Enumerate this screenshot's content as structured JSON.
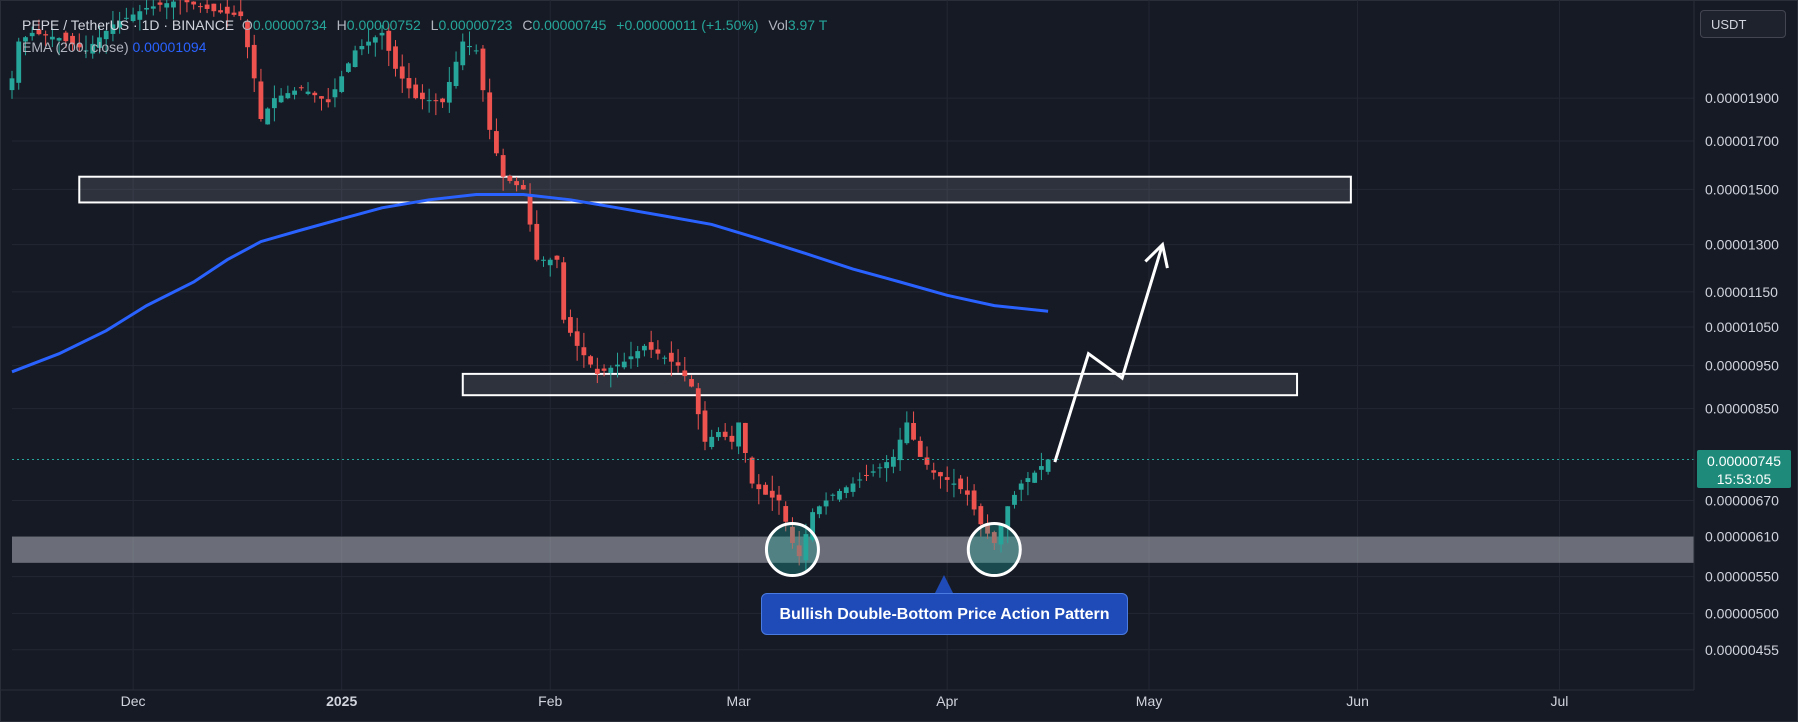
{
  "legend": {
    "symbol": "PEPE / TetherUS · 1D · BINANCE",
    "o_label": "O",
    "o_value": "0.00000734",
    "h_label": "H",
    "h_value": "0.00000752",
    "l_label": "L",
    "l_value": "0.00000723",
    "c_label": "C",
    "c_value": "0.00000745",
    "change": "+0.00000011 (+1.50%)",
    "vol_label": "Vol",
    "vol_value": "3.97 T",
    "ema_label": "EMA (200, close)",
    "ema_value": "0.00001094"
  },
  "currency_button": "USDT",
  "price_tag": {
    "price": "0.00000745",
    "countdown": "15:53:05"
  },
  "annotation_text": "Bullish Double-Bottom Price Action Pattern",
  "colors": {
    "background": "#161a25",
    "up": "#26a69a",
    "down": "#ef5350",
    "ema": "#2962ff",
    "grid": "#232733",
    "axis_text": "#d1d4dc"
  },
  "chart_data": {
    "type": "candlestick",
    "title": "PEPE / TetherUS · 1D · BINANCE",
    "y_scale": "log",
    "ylim": [
      4.1e-06,
      2.45e-05
    ],
    "x_range": [
      "2024-11-13",
      "2025-07-21"
    ],
    "x_ticks": [
      {
        "date": "2024-12-01",
        "label": "Dec",
        "bold": false
      },
      {
        "date": "2025-01-01",
        "label": "2025",
        "bold": true
      },
      {
        "date": "2025-02-01",
        "label": "Feb",
        "bold": false
      },
      {
        "date": "2025-03-01",
        "label": "Mar",
        "bold": false
      },
      {
        "date": "2025-04-01",
        "label": "Apr",
        "bold": false
      },
      {
        "date": "2025-05-01",
        "label": "May",
        "bold": false
      },
      {
        "date": "2025-06-01",
        "label": "Jun",
        "bold": false
      },
      {
        "date": "2025-07-01",
        "label": "Jul",
        "bold": false
      }
    ],
    "y_ticks": [
      {
        "value": 1.9e-05,
        "label": "0.00001900"
      },
      {
        "value": 1.7e-05,
        "label": "0.00001700"
      },
      {
        "value": 1.5e-05,
        "label": "0.00001500"
      },
      {
        "value": 1.3e-05,
        "label": "0.00001300"
      },
      {
        "value": 1.15e-05,
        "label": "0.00001150"
      },
      {
        "value": 1.05e-05,
        "label": "0.00001050"
      },
      {
        "value": 9.5e-06,
        "label": "0.00000950"
      },
      {
        "value": 8.5e-06,
        "label": "0.00000850"
      },
      {
        "value": 7.45e-06,
        "label": "0.00000745"
      },
      {
        "value": 6.7e-06,
        "label": "0.00000670"
      },
      {
        "value": 6.1e-06,
        "label": "0.00000610"
      },
      {
        "value": 5.5e-06,
        "label": "0.00000550"
      },
      {
        "value": 5e-06,
        "label": "0.00000500"
      },
      {
        "value": 4.55e-06,
        "label": "0.00000455"
      }
    ],
    "last_price": 7.45e-06,
    "closes": [
      {
        "date": "2024-11-13",
        "close": 2e-05
      },
      {
        "date": "2024-11-14",
        "close": 2.2e-05
      },
      {
        "date": "2024-11-16",
        "close": 2.25e-05
      },
      {
        "date": "2024-11-20",
        "close": 2.22e-05
      },
      {
        "date": "2024-11-24",
        "close": 2.15e-05
      },
      {
        "date": "2024-11-28",
        "close": 2.3e-05
      },
      {
        "date": "2024-12-03",
        "close": 2.4e-05
      },
      {
        "date": "2024-12-08",
        "close": 2.45e-05
      },
      {
        "date": "2024-12-13",
        "close": 2.38e-05
      },
      {
        "date": "2024-12-17",
        "close": 2.35e-05
      },
      {
        "date": "2024-12-19",
        "close": 2e-05
      },
      {
        "date": "2024-12-20",
        "close": 1.8e-05
      },
      {
        "date": "2024-12-22",
        "close": 1.9e-05
      },
      {
        "date": "2024-12-26",
        "close": 1.95e-05
      },
      {
        "date": "2024-12-30",
        "close": 1.88e-05
      },
      {
        "date": "2025-01-03",
        "close": 2.15e-05
      },
      {
        "date": "2025-01-07",
        "close": 2.25e-05
      },
      {
        "date": "2025-01-09",
        "close": 2.05e-05
      },
      {
        "date": "2025-01-12",
        "close": 1.9e-05
      },
      {
        "date": "2025-01-16",
        "close": 1.88e-05
      },
      {
        "date": "2025-01-19",
        "close": 2.2e-05
      },
      {
        "date": "2025-01-21",
        "close": 2.15e-05
      },
      {
        "date": "2025-01-23",
        "close": 1.75e-05
      },
      {
        "date": "2025-01-25",
        "close": 1.55e-05
      },
      {
        "date": "2025-01-28",
        "close": 1.5e-05
      },
      {
        "date": "2025-01-30",
        "close": 1.25e-05
      },
      {
        "date": "2025-02-02",
        "close": 1.25e-05
      },
      {
        "date": "2025-02-03",
        "close": 1.07e-05
      },
      {
        "date": "2025-02-05",
        "close": 1e-05
      },
      {
        "date": "2025-02-08",
        "close": 9.3e-06
      },
      {
        "date": "2025-02-12",
        "close": 9.6e-06
      },
      {
        "date": "2025-02-15",
        "close": 1e-05
      },
      {
        "date": "2025-02-17",
        "close": 9.8e-06
      },
      {
        "date": "2025-02-20",
        "close": 9.5e-06
      },
      {
        "date": "2025-02-22",
        "close": 9e-06
      },
      {
        "date": "2025-02-24",
        "close": 7.8e-06
      },
      {
        "date": "2025-02-26",
        "close": 8e-06
      },
      {
        "date": "2025-02-28",
        "close": 7.8e-06
      },
      {
        "date": "2025-03-01",
        "close": 8.2e-06
      },
      {
        "date": "2025-03-03",
        "close": 7e-06
      },
      {
        "date": "2025-03-05",
        "close": 6.8e-06
      },
      {
        "date": "2025-03-07",
        "close": 6.7e-06
      },
      {
        "date": "2025-03-09",
        "close": 6e-06
      },
      {
        "date": "2025-03-10",
        "close": 5.8e-06
      },
      {
        "date": "2025-03-12",
        "close": 6.5e-06
      },
      {
        "date": "2025-03-15",
        "close": 6.8e-06
      },
      {
        "date": "2025-03-18",
        "close": 7e-06
      },
      {
        "date": "2025-03-22",
        "close": 7.3e-06
      },
      {
        "date": "2025-03-24",
        "close": 7.5e-06
      },
      {
        "date": "2025-03-26",
        "close": 8.2e-06
      },
      {
        "date": "2025-03-28",
        "close": 7.5e-06
      },
      {
        "date": "2025-03-30",
        "close": 7.2e-06
      },
      {
        "date": "2025-04-02",
        "close": 7e-06
      },
      {
        "date": "2025-04-04",
        "close": 6.8e-06
      },
      {
        "date": "2025-04-06",
        "close": 6.3e-06
      },
      {
        "date": "2025-04-08",
        "close": 6e-06
      },
      {
        "date": "2025-04-10",
        "close": 6.6e-06
      },
      {
        "date": "2025-04-12",
        "close": 7e-06
      },
      {
        "date": "2025-04-14",
        "close": 7.2e-06
      },
      {
        "date": "2025-04-16",
        "close": 7.45e-06
      }
    ],
    "series": [
      {
        "name": "EMA (200, close)",
        "type": "line",
        "color": "#2962ff",
        "points": [
          {
            "date": "2024-11-13",
            "value": 9.35e-06
          },
          {
            "date": "2024-11-20",
            "value": 9.8e-06
          },
          {
            "date": "2024-11-27",
            "value": 1.04e-05
          },
          {
            "date": "2024-12-03",
            "value": 1.11e-05
          },
          {
            "date": "2024-12-10",
            "value": 1.18e-05
          },
          {
            "date": "2024-12-15",
            "value": 1.25e-05
          },
          {
            "date": "2024-12-20",
            "value": 1.31e-05
          },
          {
            "date": "2024-12-26",
            "value": 1.35e-05
          },
          {
            "date": "2025-01-01",
            "value": 1.39e-05
          },
          {
            "date": "2025-01-07",
            "value": 1.43e-05
          },
          {
            "date": "2025-01-14",
            "value": 1.46e-05
          },
          {
            "date": "2025-01-21",
            "value": 1.48e-05
          },
          {
            "date": "2025-01-28",
            "value": 1.48e-05
          },
          {
            "date": "2025-02-04",
            "value": 1.46e-05
          },
          {
            "date": "2025-02-11",
            "value": 1.43e-05
          },
          {
            "date": "2025-02-18",
            "value": 1.4e-05
          },
          {
            "date": "2025-02-25",
            "value": 1.37e-05
          },
          {
            "date": "2025-03-04",
            "value": 1.32e-05
          },
          {
            "date": "2025-03-11",
            "value": 1.27e-05
          },
          {
            "date": "2025-03-18",
            "value": 1.22e-05
          },
          {
            "date": "2025-03-25",
            "value": 1.18e-05
          },
          {
            "date": "2025-04-01",
            "value": 1.14e-05
          },
          {
            "date": "2025-04-08",
            "value": 1.11e-05
          },
          {
            "date": "2025-04-16",
            "value": 1.094e-05
          }
        ]
      }
    ],
    "zones": [
      {
        "name": "upper resistance zone",
        "from": "2024-11-23",
        "to": "2025-05-31",
        "low": 1.45e-05,
        "high": 1.55e-05
      },
      {
        "name": "middle resistance zone",
        "from": "2025-01-19",
        "to": "2025-05-23",
        "low": 8.8e-06,
        "high": 9.3e-06
      },
      {
        "name": "support zone",
        "from": "2024-11-13",
        "to": "2025-07-21",
        "low": 5.7e-06,
        "high": 6.1e-06
      }
    ],
    "markers": [
      {
        "shape": "circle",
        "date": "2025-03-09",
        "value": 5.9e-06
      },
      {
        "shape": "circle",
        "date": "2025-04-08",
        "value": 5.9e-06
      }
    ],
    "projection": [
      {
        "date": "2025-04-17",
        "value": 7.4e-06
      },
      {
        "date": "2025-04-22",
        "value": 9.8e-06
      },
      {
        "date": "2025-04-27",
        "value": 9.2e-06
      },
      {
        "date": "2025-05-03",
        "value": 1.3e-05
      }
    ]
  }
}
